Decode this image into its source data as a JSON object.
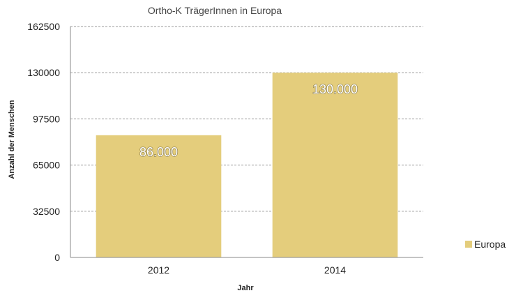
{
  "chart_data": {
    "type": "bar",
    "title": "Ortho-K TrägerInnen in Europa",
    "xlabel": "Jahr",
    "ylabel": "Anzahl der Menschen",
    "categories": [
      "2012",
      "2014"
    ],
    "series": [
      {
        "name": "Europa",
        "values": [
          86000,
          130000
        ],
        "data_labels": [
          "86.000",
          "130.000"
        ]
      }
    ],
    "ylim": [
      0,
      162500
    ],
    "yticks": [
      "0",
      "32500",
      "65000",
      "97500",
      "130000",
      "162500"
    ],
    "grid": true,
    "grid_style": "dashed",
    "legend_position": "right",
    "colors": {
      "bar": "#e4cd7c",
      "grid": "#9a9a9a",
      "axis": "#888888"
    }
  }
}
